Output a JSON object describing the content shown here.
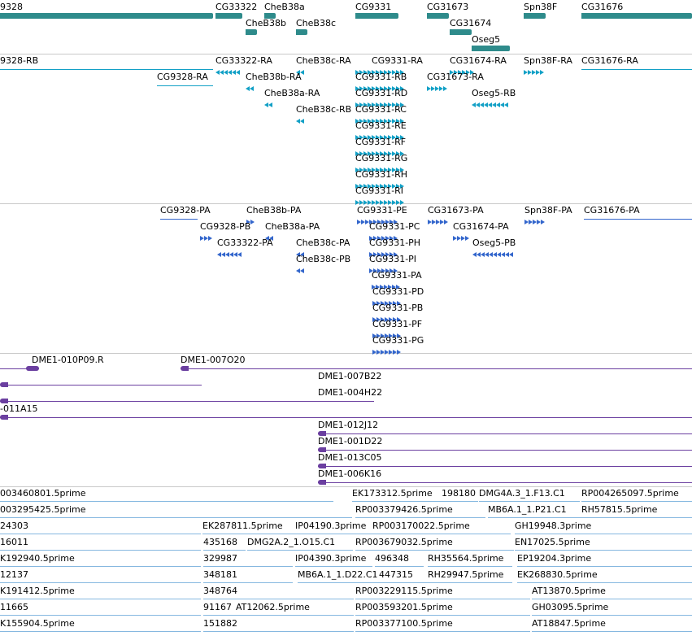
{
  "colors": {
    "gene": "#2e8b8b",
    "mrna": "#12a0c6",
    "protein": "#3366cc",
    "bac": "#6b3fa0",
    "est": "#86b8e0"
  },
  "tracks": [
    {
      "name": "gene",
      "color": "gene",
      "features": [
        {
          "label": "9328",
          "bar": "wide"
        },
        {
          "label": "CG33322",
          "bar": "wide"
        },
        {
          "label": "CheB38a",
          "bar": "short"
        },
        {
          "label": "CG9331",
          "bar": "wide"
        },
        {
          "label": "CG31673",
          "bar": "short"
        },
        {
          "label": "Spn38F",
          "bar": "short"
        },
        {
          "label": "CG31676",
          "bar": "wide"
        },
        {
          "label": "CheB38b",
          "bar": "short"
        },
        {
          "label": "CheB38c",
          "bar": "short"
        },
        {
          "label": "CG31674",
          "bar": "short"
        },
        {
          "label": "Oseg5",
          "bar": "short"
        }
      ]
    },
    {
      "name": "mrna",
      "color": "mrna",
      "features": [
        {
          "label": "9328-RB"
        },
        {
          "label": "CG33322-RA"
        },
        {
          "label": "CheB38c-RA"
        },
        {
          "label": "CG9331-RA"
        },
        {
          "label": "CG31674-RA"
        },
        {
          "label": "Spn38F-RA"
        },
        {
          "label": "CG31676-RA"
        },
        {
          "label": "CG9328-RA"
        },
        {
          "label": "CheB38b-RA"
        },
        {
          "label": "CG9331-RB"
        },
        {
          "label": "CG31673-RA"
        },
        {
          "label": "CheB38a-RA"
        },
        {
          "label": "CG9331-RD"
        },
        {
          "label": "Oseg5-RB"
        },
        {
          "label": "CheB38c-RB"
        },
        {
          "label": "CG9331-RC"
        },
        {
          "label": "CG9331-RE"
        },
        {
          "label": "CG9331-RF"
        },
        {
          "label": "CG9331-RG"
        },
        {
          "label": "CG9331-RH"
        },
        {
          "label": "CG9331-RI"
        }
      ]
    },
    {
      "name": "protein",
      "color": "protein",
      "features": [
        {
          "label": "CG9328-PA"
        },
        {
          "label": "CheB38b-PA"
        },
        {
          "label": "CG9331-PE"
        },
        {
          "label": "CG31673-PA"
        },
        {
          "label": "Spn38F-PA"
        },
        {
          "label": "CG31676-PA"
        },
        {
          "label": "CG9328-PB"
        },
        {
          "label": "CheB38a-PA"
        },
        {
          "label": "CG9331-PC"
        },
        {
          "label": "CG31674-PA"
        },
        {
          "label": "CG33322-PA"
        },
        {
          "label": "CheB38c-PA"
        },
        {
          "label": "CG9331-PH"
        },
        {
          "label": "Oseg5-PB"
        },
        {
          "label": "CheB38c-PB"
        },
        {
          "label": "CG9331-PI"
        },
        {
          "label": "CG9331-PA"
        },
        {
          "label": "CG9331-PD"
        },
        {
          "label": "CG9331-PB"
        },
        {
          "label": "CG9331-PF"
        },
        {
          "label": "CG9331-PG"
        }
      ]
    },
    {
      "name": "bac",
      "color": "bac",
      "features": [
        {
          "label": "DME1-010P09.R"
        },
        {
          "label": "DME1-007O20"
        },
        {
          "label": "DME1-007B22"
        },
        {
          "label": "DME1-004H22"
        },
        {
          "label": "-011A15"
        },
        {
          "label": "DME1-012J12"
        },
        {
          "label": "DME1-001D22"
        },
        {
          "label": "DME1-013C05"
        },
        {
          "label": "DME1-006K16"
        }
      ]
    },
    {
      "name": "est",
      "color": "est",
      "features": [
        {
          "label": "003460801.5prime"
        },
        {
          "label": "EK173312.5prime"
        },
        {
          "label": "198180"
        },
        {
          "label": "DMG4A.3_1.F13.C1"
        },
        {
          "label": "RP004265097.5prime"
        },
        {
          "label": "003295425.5prime"
        },
        {
          "label": "RP003379426.5prime"
        },
        {
          "label": "MB6A.1_1.P21.C1"
        },
        {
          "label": "RH57815.5prime"
        },
        {
          "label": "24303"
        },
        {
          "label": "EK287811.5prime"
        },
        {
          "label": "IP04190.3prime"
        },
        {
          "label": "RP003170022.5prime"
        },
        {
          "label": "GH19948.3prime"
        },
        {
          "label": "16011"
        },
        {
          "label": "435168"
        },
        {
          "label": "DMG2A.2_1.O15.C1"
        },
        {
          "label": "RP003679032.5prime"
        },
        {
          "label": "EN17025.5prime"
        },
        {
          "label": "K192940.5prime"
        },
        {
          "label": "329987"
        },
        {
          "label": "IP04390.3prime"
        },
        {
          "label": "496348"
        },
        {
          "label": "RH35564.5prime"
        },
        {
          "label": "EP19204.3prime"
        },
        {
          "label": "12137"
        },
        {
          "label": "348181"
        },
        {
          "label": "MB6A.1_1.D22.C1"
        },
        {
          "label": "447315"
        },
        {
          "label": "RH29947.5prime"
        },
        {
          "label": "EK268830.5prime"
        },
        {
          "label": "K191412.5prime"
        },
        {
          "label": "348764"
        },
        {
          "label": "RP003229115.5prime"
        },
        {
          "label": "AT13870.5prime"
        },
        {
          "label": "11665"
        },
        {
          "label": "91167"
        },
        {
          "label": "AT12062.5prime"
        },
        {
          "label": "RP003593201.5prime"
        },
        {
          "label": "GH03095.5prime"
        },
        {
          "label": "K155904.5prime"
        },
        {
          "label": "151882"
        },
        {
          "label": "RP003377100.5prime"
        },
        {
          "label": "AT18847.5prime"
        }
      ]
    }
  ]
}
